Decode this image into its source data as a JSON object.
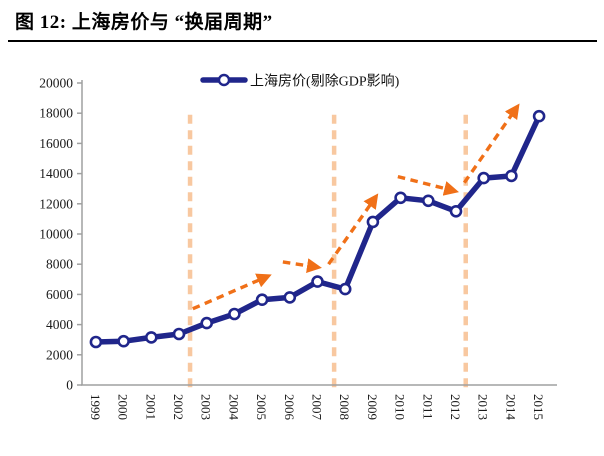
{
  "page": {
    "title": "图 12: 上海房价与 “换届周期”"
  },
  "chart_data": {
    "type": "line",
    "title": "图 12: 上海房价与 “换届周期”",
    "legend": [
      "上海房价(剔除GDP影响)"
    ],
    "legend_position": "top-center",
    "categories": [
      1999,
      2000,
      2001,
      2002,
      2003,
      2004,
      2005,
      2006,
      2007,
      2008,
      2009,
      2010,
      2011,
      2012,
      2013,
      2014,
      2015
    ],
    "series": [
      {
        "name": "上海房价(剔除GDP影响)",
        "values": [
          2850,
          2900,
          3150,
          3380,
          4100,
          4700,
          5650,
          5800,
          6850,
          6350,
          10800,
          12400,
          12200,
          11500,
          13700,
          13850,
          17800
        ]
      }
    ],
    "xlabel": "",
    "ylabel": "",
    "ylim": [
      0,
      20000
    ],
    "ytick_step": 2000,
    "grid": false,
    "annotations": {
      "vline_top": 17900,
      "vlines": [
        {
          "x": 2002.4
        },
        {
          "x": 2007.6
        },
        {
          "x": 2012.35
        }
      ],
      "arrows": [
        {
          "x1": 2002.5,
          "y1": 5050,
          "x2": 2005.2,
          "y2": 7200
        },
        {
          "x1": 2005.75,
          "y1": 8150,
          "x2": 2007.0,
          "y2": 7800
        },
        {
          "x1": 2007.4,
          "y1": 8000,
          "x2": 2009.1,
          "y2": 12450
        },
        {
          "x1": 2009.9,
          "y1": 13800,
          "x2": 2011.95,
          "y2": 12850
        },
        {
          "x1": 2012.3,
          "y1": 13400,
          "x2": 2014.2,
          "y2": 18400
        }
      ]
    },
    "colors": {
      "line": "#20268B",
      "marker_fill": "#FFFFFF",
      "arrow": "#F07018",
      "vline": "#F8C8A0",
      "axis": "#9FA0A0",
      "text": "#1A1A1A"
    }
  }
}
